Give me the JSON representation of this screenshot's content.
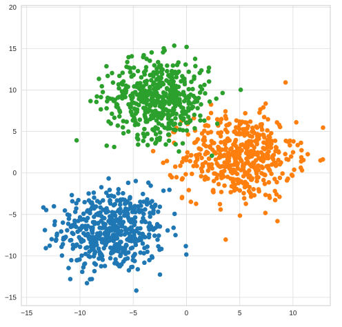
{
  "chart_data": {
    "type": "scatter",
    "title": "",
    "xlabel": "",
    "ylabel": "",
    "xlim": [
      -15.5,
      13.5
    ],
    "ylim": [
      -16,
      20.2
    ],
    "xticks": [
      -15,
      -10,
      -5,
      0,
      5,
      10
    ],
    "yticks": [
      -15,
      -10,
      -5,
      0,
      5,
      10,
      15,
      20
    ],
    "grid": true,
    "legend": "none",
    "point_count_per_cluster": 500,
    "series": [
      {
        "color": "#1f77b4",
        "center": [
          -7,
          -7
        ],
        "std": 2.5
      },
      {
        "color": "#ff7f0e",
        "center": [
          5,
          2
        ],
        "std": 2.6
      },
      {
        "color": "#2ca02c",
        "center": [
          -2.6,
          9
        ],
        "std": 2.4
      }
    ]
  }
}
